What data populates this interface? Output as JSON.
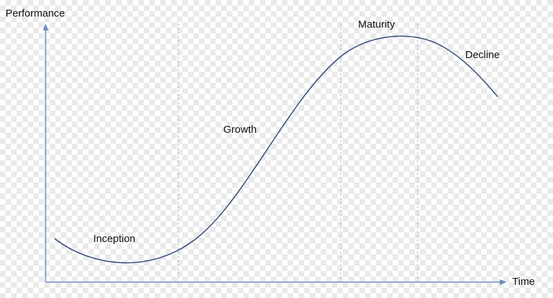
{
  "diagram": {
    "y_axis_label": "Performance",
    "x_axis_label": "Time",
    "phases": [
      {
        "label": "Inception"
      },
      {
        "label": "Growth"
      },
      {
        "label": "Maturity"
      },
      {
        "label": "Decline"
      }
    ],
    "colors": {
      "curve": "#2f4a7a",
      "axis": "#6f8fc0",
      "divider": "#9fb6d8"
    }
  }
}
